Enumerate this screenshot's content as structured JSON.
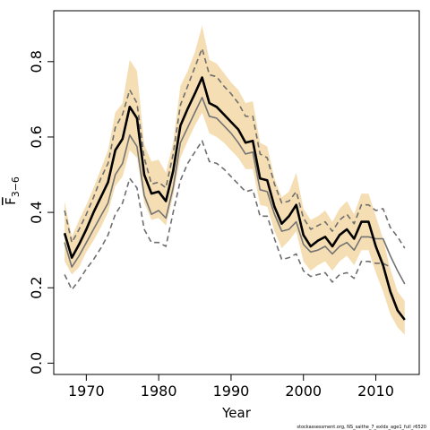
{
  "chart_data": {
    "type": "line",
    "xlabel": "Year",
    "ylabel": "F̅₃₋₆",
    "ylabel_main": "F",
    "ylabel_sub": "3−6",
    "xlim": [
      1965.5,
      2016
    ],
    "ylim": [
      -0.03,
      0.935
    ],
    "x_ticks": [
      1970,
      1980,
      1990,
      2000,
      2010
    ],
    "x_tick_labels": [
      "1970",
      "1980",
      "1990",
      "2000",
      "2010"
    ],
    "y_ticks": [
      0.0,
      0.2,
      0.4,
      0.6,
      0.8
    ],
    "y_tick_labels": [
      "0.0",
      "0.2",
      "0.4",
      "0.6",
      "0.8"
    ],
    "grid": false,
    "legend": "none",
    "credit": "stockassessment.org, NS_saithe_7_exldx_age1_full_r6520",
    "colors": {
      "band": "#f5deb3",
      "main": "#000000",
      "second": "#737373",
      "dashed": "#6e6e6e",
      "axis": "#000000"
    },
    "series": [
      {
        "role": "main-estimate",
        "x": [
          1967,
          1968,
          1969,
          1970,
          1971,
          1972,
          1973,
          1974,
          1975,
          1976,
          1977,
          1978,
          1979,
          1980,
          1981,
          1982,
          1983,
          1984,
          1985,
          1986,
          1987,
          1988,
          1989,
          1990,
          1991,
          1992,
          1993,
          1994,
          1995,
          1996,
          1997,
          1998,
          1999,
          2000,
          2001,
          2002,
          2003,
          2004,
          2005,
          2006,
          2007,
          2008,
          2009,
          2010,
          2011,
          2012,
          2013,
          2014
        ],
        "values": [
          0.345,
          0.28,
          0.315,
          0.355,
          0.4,
          0.44,
          0.48,
          0.565,
          0.595,
          0.68,
          0.65,
          0.5,
          0.45,
          0.455,
          0.43,
          0.51,
          0.63,
          0.675,
          0.715,
          0.758,
          0.69,
          0.68,
          0.66,
          0.64,
          0.62,
          0.585,
          0.59,
          0.49,
          0.485,
          0.415,
          0.37,
          0.39,
          0.42,
          0.34,
          0.31,
          0.325,
          0.335,
          0.31,
          0.34,
          0.355,
          0.33,
          0.375,
          0.375,
          0.31,
          0.26,
          0.19,
          0.14,
          0.115
        ]
      },
      {
        "role": "band-lower",
        "x": [
          1967,
          1968,
          1969,
          1970,
          1971,
          1972,
          1973,
          1974,
          1975,
          1976,
          1977,
          1978,
          1979,
          1980,
          1981,
          1982,
          1983,
          1984,
          1985,
          1986,
          1987,
          1988,
          1989,
          1990,
          1991,
          1992,
          1993,
          1994,
          1995,
          1996,
          1997,
          1998,
          1999,
          2000,
          2001,
          2002,
          2003,
          2004,
          2005,
          2006,
          2007,
          2008,
          2009,
          2010,
          2011,
          2012,
          2013,
          2014
        ],
        "values": [
          0.27,
          0.235,
          0.255,
          0.295,
          0.325,
          0.36,
          0.4,
          0.47,
          0.495,
          0.565,
          0.545,
          0.425,
          0.38,
          0.385,
          0.365,
          0.445,
          0.545,
          0.59,
          0.63,
          0.665,
          0.61,
          0.6,
          0.585,
          0.565,
          0.545,
          0.515,
          0.515,
          0.42,
          0.415,
          0.35,
          0.305,
          0.325,
          0.35,
          0.27,
          0.245,
          0.26,
          0.27,
          0.245,
          0.27,
          0.285,
          0.26,
          0.3,
          0.3,
          0.24,
          0.19,
          0.13,
          0.095,
          0.075
        ]
      },
      {
        "role": "band-upper",
        "x": [
          1967,
          1968,
          1969,
          1970,
          1971,
          1972,
          1973,
          1974,
          1975,
          1976,
          1977,
          1978,
          1979,
          1980,
          1981,
          1982,
          1983,
          1984,
          1985,
          1986,
          1987,
          1988,
          1989,
          1990,
          1991,
          1992,
          1993,
          1994,
          1995,
          1996,
          1997,
          1998,
          1999,
          2000,
          2001,
          2002,
          2003,
          2004,
          2005,
          2006,
          2007,
          2008,
          2009,
          2010,
          2011,
          2012,
          2013,
          2014
        ],
        "values": [
          0.43,
          0.335,
          0.38,
          0.42,
          0.465,
          0.515,
          0.565,
          0.665,
          0.69,
          0.805,
          0.775,
          0.58,
          0.535,
          0.54,
          0.505,
          0.585,
          0.735,
          0.775,
          0.825,
          0.895,
          0.805,
          0.795,
          0.77,
          0.745,
          0.725,
          0.69,
          0.695,
          0.585,
          0.575,
          0.49,
          0.44,
          0.455,
          0.505,
          0.41,
          0.38,
          0.39,
          0.405,
          0.375,
          0.41,
          0.43,
          0.395,
          0.45,
          0.45,
          0.39,
          0.33,
          0.25,
          0.19,
          0.165
        ]
      },
      {
        "role": "secondary-estimate",
        "x": [
          1967,
          1968,
          1969,
          1970,
          1971,
          1972,
          1973,
          1974,
          1975,
          1976,
          1977,
          1978,
          1979,
          1980,
          1981,
          1982,
          1983,
          1984,
          1985,
          1986,
          1987,
          1988,
          1989,
          1990,
          1991,
          1992,
          1993,
          1994,
          1995,
          1996,
          1997,
          1998,
          1999,
          2000,
          2001,
          2002,
          2003,
          2004,
          2005,
          2006,
          2007,
          2008,
          2009,
          2010,
          2011,
          2012,
          2013,
          2014
        ],
        "values": [
          0.32,
          0.255,
          0.285,
          0.32,
          0.355,
          0.39,
          0.425,
          0.5,
          0.53,
          0.605,
          0.575,
          0.445,
          0.395,
          0.405,
          0.385,
          0.465,
          0.585,
          0.625,
          0.665,
          0.705,
          0.655,
          0.65,
          0.63,
          0.61,
          0.585,
          0.555,
          0.56,
          0.46,
          0.455,
          0.395,
          0.35,
          0.355,
          0.375,
          0.315,
          0.295,
          0.3,
          0.31,
          0.29,
          0.31,
          0.32,
          0.3,
          0.335,
          0.335,
          0.33,
          0.33,
          0.285,
          0.245,
          0.21
        ]
      },
      {
        "role": "dashed-lower",
        "x": [
          1967,
          1968,
          1969,
          1970,
          1971,
          1972,
          1973,
          1974,
          1975,
          1976,
          1977,
          1978,
          1979,
          1980,
          1981,
          1982,
          1983,
          1984,
          1985,
          1986,
          1987,
          1988,
          1989,
          1990,
          1991,
          1992,
          1993,
          1994,
          1995,
          1996,
          1997,
          1998,
          1999,
          2000,
          2001,
          2002,
          2003,
          2004,
          2005,
          2006,
          2007,
          2008,
          2009,
          2010,
          2011,
          2012
        ],
        "values": [
          0.235,
          0.195,
          0.22,
          0.25,
          0.275,
          0.305,
          0.34,
          0.395,
          0.425,
          0.49,
          0.465,
          0.355,
          0.32,
          0.32,
          0.31,
          0.4,
          0.485,
          0.53,
          0.56,
          0.59,
          0.535,
          0.53,
          0.515,
          0.495,
          0.475,
          0.455,
          0.46,
          0.39,
          0.39,
          0.33,
          0.275,
          0.28,
          0.29,
          0.245,
          0.23,
          0.235,
          0.24,
          0.215,
          0.235,
          0.24,
          0.225,
          0.27,
          0.27,
          0.265,
          0.265,
          0.255
        ]
      },
      {
        "role": "dashed-upper",
        "x": [
          1967,
          1968,
          1969,
          1970,
          1971,
          1972,
          1973,
          1974,
          1975,
          1976,
          1977,
          1978,
          1979,
          1980,
          1981,
          1982,
          1983,
          1984,
          1985,
          1986,
          1987,
          1988,
          1989,
          1990,
          1991,
          1992,
          1993,
          1994,
          1995,
          1996,
          1997,
          1998,
          1999,
          2000,
          2001,
          2002,
          2003,
          2004,
          2005,
          2006,
          2007,
          2008,
          2009,
          2010,
          2011,
          2012,
          2013,
          2014
        ],
        "values": [
          0.405,
          0.32,
          0.355,
          0.395,
          0.44,
          0.49,
          0.53,
          0.625,
          0.66,
          0.725,
          0.69,
          0.545,
          0.475,
          0.48,
          0.465,
          0.555,
          0.685,
          0.735,
          0.785,
          0.835,
          0.765,
          0.76,
          0.735,
          0.715,
          0.69,
          0.655,
          0.655,
          0.555,
          0.545,
          0.475,
          0.425,
          0.43,
          0.455,
          0.385,
          0.355,
          0.365,
          0.375,
          0.35,
          0.38,
          0.395,
          0.37,
          0.42,
          0.42,
          0.405,
          0.41,
          0.36,
          0.335,
          0.305
        ]
      }
    ]
  }
}
